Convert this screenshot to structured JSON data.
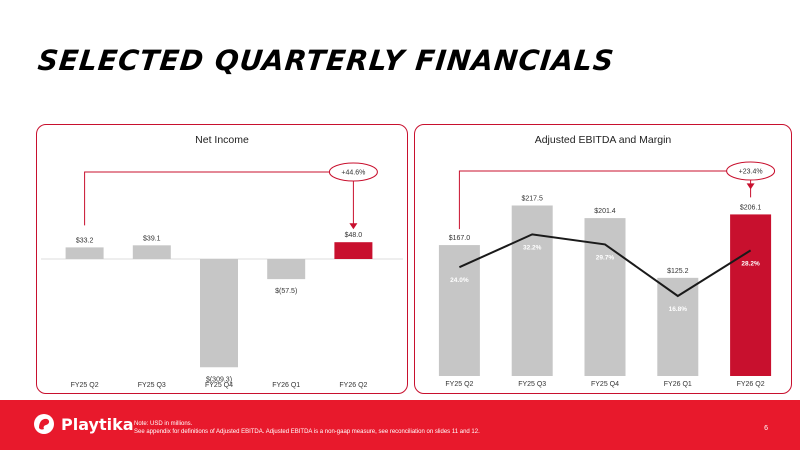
{
  "page_title": "SELECTED QUARTERLY FINANCIALS",
  "colors": {
    "accent": "#c8102e",
    "bar_grey": "#c6c6c6",
    "footer_red": "#e8192c",
    "line": "#1a1a1a"
  },
  "chart_data": [
    {
      "type": "bar",
      "title": "Net Income",
      "categories": [
        "FY25 Q2",
        "FY25 Q3",
        "FY25 Q4",
        "FY26 Q1",
        "FY26 Q2"
      ],
      "values": [
        33.2,
        39.1,
        -309.3,
        -57.5,
        48.0
      ],
      "value_labels": [
        "$33.2",
        "$39.1",
        "$(309.3)",
        "$(57.5)",
        "$48.0"
      ],
      "highlight_index": 4,
      "comparison": {
        "from": "FY25 Q2",
        "to": "FY26 Q2",
        "label": "+44.6%"
      }
    },
    {
      "type": "bar",
      "title": "Adjusted EBITDA and Margin",
      "categories": [
        "FY25 Q2",
        "FY25 Q3",
        "FY25 Q4",
        "FY26 Q1",
        "FY26 Q2"
      ],
      "values": [
        167.0,
        217.5,
        201.4,
        125.2,
        206.1
      ],
      "value_labels": [
        "$167.0",
        "$217.5",
        "$201.4",
        "$125.2",
        "$206.1"
      ],
      "margin_values": [
        24.0,
        32.2,
        29.7,
        16.8,
        28.2
      ],
      "margin_labels": [
        "24.0%",
        "32.2%",
        "29.7%",
        "16.8%",
        "28.2%"
      ],
      "highlight_index": 4,
      "comparison": {
        "from": "FY25 Q2",
        "to": "FY26 Q2",
        "label": "+23.4%"
      }
    }
  ],
  "footer": {
    "brand": "Playtika",
    "note_line1": "Note:  USD in millions.",
    "note_line2": "See appendix for definitions of Adjusted EBITDA. Adjusted EBITDA is a non-gaap measure, see reconciliation on slides 11 and 12.",
    "page_number": "6"
  }
}
